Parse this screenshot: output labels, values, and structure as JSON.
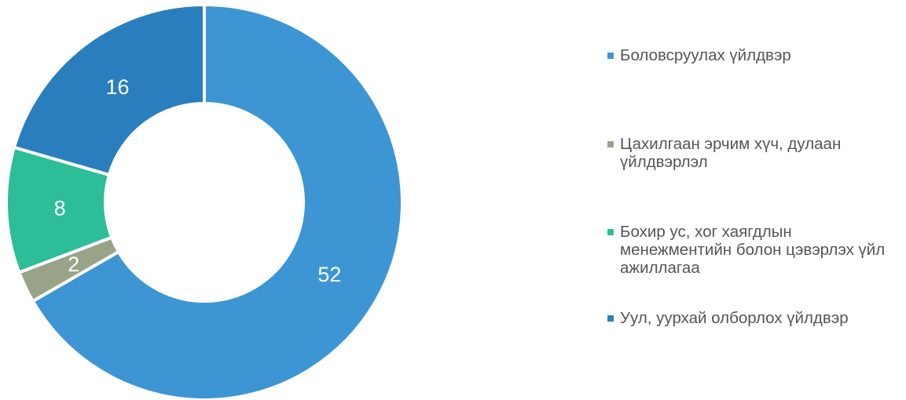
{
  "chart_data": {
    "type": "pie",
    "title": "",
    "donut": true,
    "legend_position": "right",
    "series": [
      {
        "name": "Боловсруулах үйлдвэр",
        "value": 52,
        "color": "#3D95D3"
      },
      {
        "name": "Цахилгаан эрчим хүч, дулаан үйлдвэрлэл",
        "value": 2,
        "color": "#98A388"
      },
      {
        "name": "Бохир ус, хог хаягдлын менежментийн болон цэвэрлэх үйл ажиллагаа",
        "value": 8,
        "color": "#2DBD98"
      },
      {
        "name": "Уул, уурхай олборлох үйлдвэр",
        "value": 16,
        "color": "#2B7EBD"
      }
    ],
    "data_labels": [
      "52",
      "2",
      "8",
      "16"
    ]
  }
}
